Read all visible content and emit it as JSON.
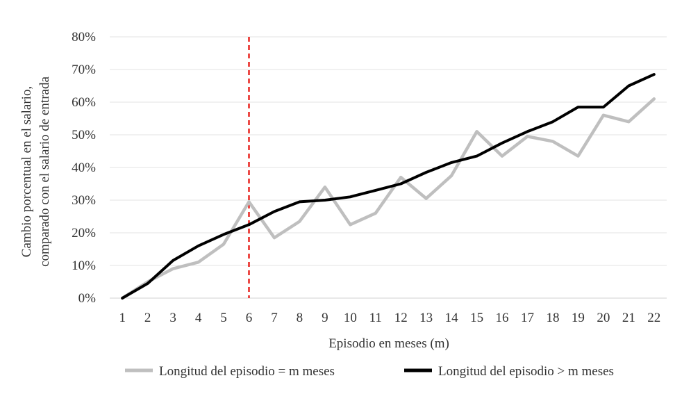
{
  "chart_data": {
    "type": "line",
    "title": "",
    "xlabel": "Episodio en meses (m)",
    "ylabel_lines": [
      "Cambio porcentual en el salario,",
      "comparado con el salario de entrada"
    ],
    "x": [
      1,
      2,
      3,
      4,
      5,
      6,
      7,
      8,
      9,
      10,
      11,
      12,
      13,
      14,
      15,
      16,
      17,
      18,
      19,
      20,
      21,
      22
    ],
    "x_tick_labels": [
      "1",
      "2",
      "3",
      "4",
      "5",
      "6",
      "7",
      "8",
      "9",
      "10",
      "11",
      "12",
      "13",
      "14",
      "15",
      "16",
      "17",
      "18",
      "19",
      "20",
      "21",
      "22"
    ],
    "ylim": [
      0,
      80
    ],
    "y_ticks": [
      0,
      10,
      20,
      30,
      40,
      50,
      60,
      70,
      80
    ],
    "y_tick_labels": [
      "0%",
      "10%",
      "20%",
      "30%",
      "40%",
      "50%",
      "60%",
      "70%",
      "80%"
    ],
    "grid": true,
    "legend_position": "bottom",
    "reference_line": {
      "x": 6,
      "color": "#e8231f",
      "style": "dashed"
    },
    "series": [
      {
        "name": "Longitud del episodio = m meses",
        "color": "#bfbfbf",
        "values": [
          0,
          5,
          9,
          11,
          16.5,
          29.5,
          18.5,
          23.5,
          34,
          22.5,
          26,
          37,
          30.5,
          37.5,
          51,
          43.5,
          49.5,
          48,
          43.5,
          56,
          54,
          61
        ]
      },
      {
        "name": "Longitud del episodio > m meses",
        "color": "#000000",
        "values": [
          0,
          4.5,
          11.5,
          16,
          19.5,
          22.5,
          26.5,
          29.5,
          30,
          31,
          33,
          35,
          38.5,
          41.5,
          43.5,
          47.5,
          51,
          54,
          58.5,
          58.5,
          65,
          68.5
        ]
      }
    ]
  }
}
